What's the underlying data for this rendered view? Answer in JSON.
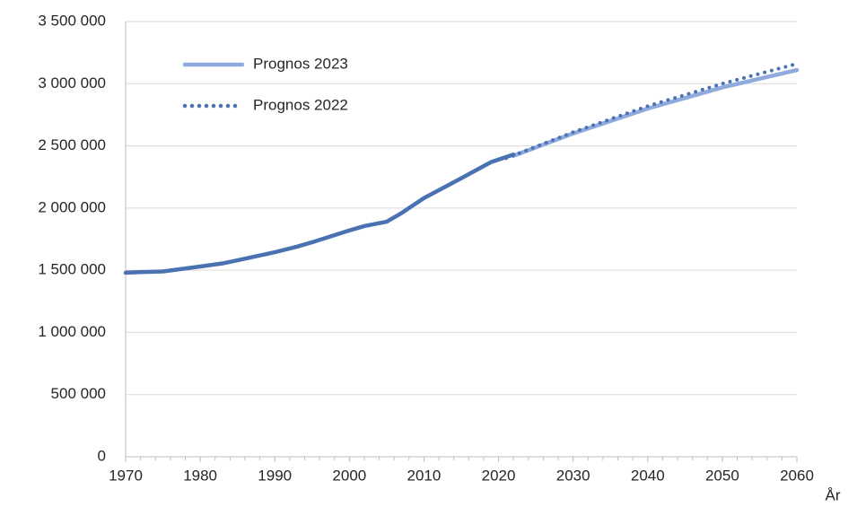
{
  "chart_data": {
    "type": "line",
    "xlabel": "År",
    "xlim": [
      1970,
      2060
    ],
    "xticks": [
      1970,
      1980,
      1990,
      2000,
      2010,
      2020,
      2030,
      2040,
      2050,
      2060
    ],
    "ylim": [
      0,
      3500000
    ],
    "yticks": [
      0,
      {
        "value": 500000,
        "label": "500 000"
      },
      {
        "value": 1000000,
        "label": "1 000 000"
      },
      {
        "value": 1500000,
        "label": "1 500 000"
      },
      {
        "value": 2000000,
        "label": "2 000 000"
      },
      {
        "value": 2500000,
        "label": "2 500 000"
      },
      {
        "value": 3000000,
        "label": "3 000 000"
      },
      {
        "value": 3500000,
        "label": "3 500 000"
      }
    ],
    "grid": true,
    "legend": "upper left",
    "series": [
      {
        "name": "Prognos 2023",
        "color": "#8faadc",
        "style": "solid",
        "x": [
          2022,
          2030,
          2040,
          2050,
          2060
        ],
        "values": [
          2420000,
          2600000,
          2800000,
          2970000,
          3110000
        ]
      },
      {
        "name": "Prognos 2022",
        "color": "#4a72b2",
        "style": "dotted",
        "x": [
          2021,
          2030,
          2040,
          2050,
          2060
        ],
        "values": [
          2400000,
          2610000,
          2820000,
          3000000,
          3160000
        ]
      },
      {
        "color": "#4a72b2",
        "style": "solid",
        "x": [
          1970,
          1972,
          1975,
          1980,
          1983,
          1985,
          1990,
          1993,
          1995,
          2000,
          2002,
          2005,
          2007,
          2010,
          2015,
          2019,
          2020,
          2022
        ],
        "values": [
          1480000,
          1485000,
          1490000,
          1530000,
          1555000,
          1580000,
          1645000,
          1690000,
          1725000,
          1820000,
          1855000,
          1890000,
          1960000,
          2080000,
          2240000,
          2370000,
          2390000,
          2430000
        ]
      }
    ]
  }
}
